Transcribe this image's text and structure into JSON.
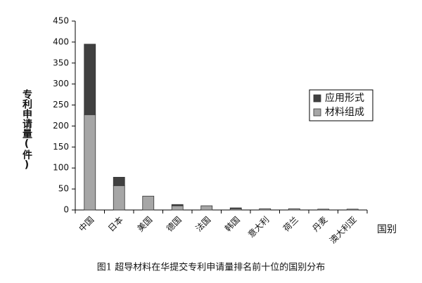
{
  "chart_data": {
    "type": "stacked_bar",
    "caption": "图1 超导材料在华提交专利申请量排名前十位的国别分布",
    "y_label": "专利申请量(件)",
    "x_label": "国别",
    "categories": [
      "中国",
      "日本",
      "美国",
      "德国",
      "法国",
      "韩国",
      "意大利",
      "荷兰",
      "丹麦",
      "澳大利亚"
    ],
    "series": [
      {
        "name": "材料组成",
        "color": "#a6a6a6",
        "values": [
          227,
          58,
          33,
          10,
          10,
          3,
          3,
          3,
          2,
          2
        ]
      },
      {
        "name": "应用形式",
        "color": "#404040",
        "values": [
          168,
          20,
          0,
          3,
          0,
          2,
          0,
          0,
          0,
          0
        ]
      }
    ],
    "ylim": [
      0,
      450
    ],
    "yticks": [
      0,
      50,
      100,
      150,
      200,
      250,
      300,
      350,
      400,
      450
    ],
    "legend": "right"
  }
}
